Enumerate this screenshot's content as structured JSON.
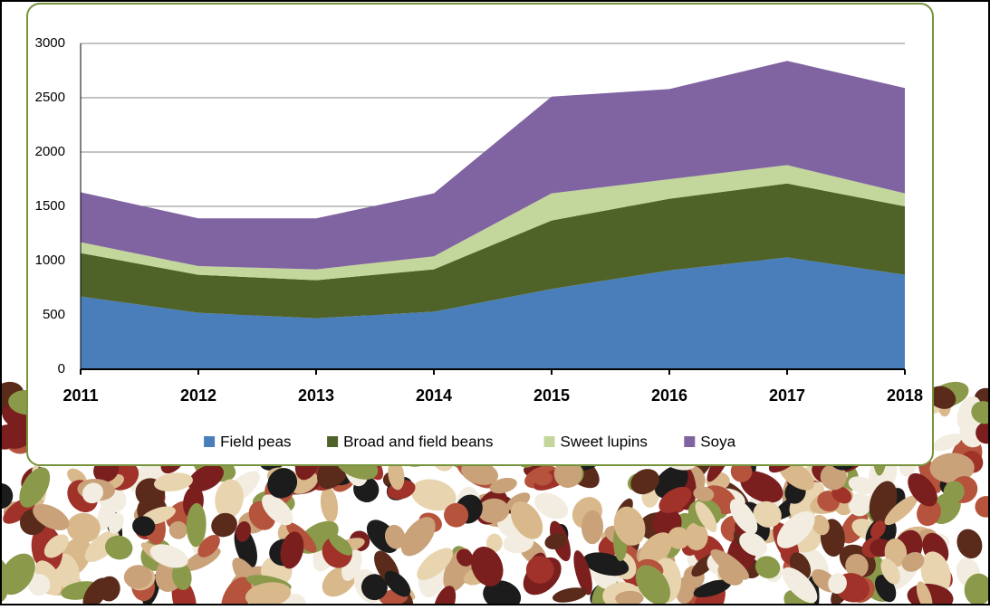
{
  "chart_data": {
    "type": "stacked-area",
    "categories": [
      "2011",
      "2012",
      "2013",
      "2014",
      "2015",
      "2016",
      "2017",
      "2018"
    ],
    "series": [
      {
        "name": "Field peas",
        "color": "#4a7ebb",
        "values": [
          670,
          520,
          470,
          530,
          740,
          910,
          1030,
          870
        ]
      },
      {
        "name": "Broad and field beans",
        "color": "#4f6228",
        "values": [
          400,
          350,
          350,
          390,
          630,
          660,
          680,
          630
        ]
      },
      {
        "name": "Sweet lupins",
        "color": "#c3d69b",
        "values": [
          100,
          80,
          100,
          120,
          250,
          180,
          170,
          120
        ]
      },
      {
        "name": "Soya",
        "color": "#8064a2",
        "values": [
          460,
          440,
          470,
          580,
          890,
          830,
          960,
          970
        ]
      }
    ],
    "ylim": [
      0,
      3000
    ],
    "yticks": [
      0,
      500,
      1000,
      1500,
      2000,
      2500,
      3000
    ],
    "grid": true,
    "legend": "bottom"
  }
}
